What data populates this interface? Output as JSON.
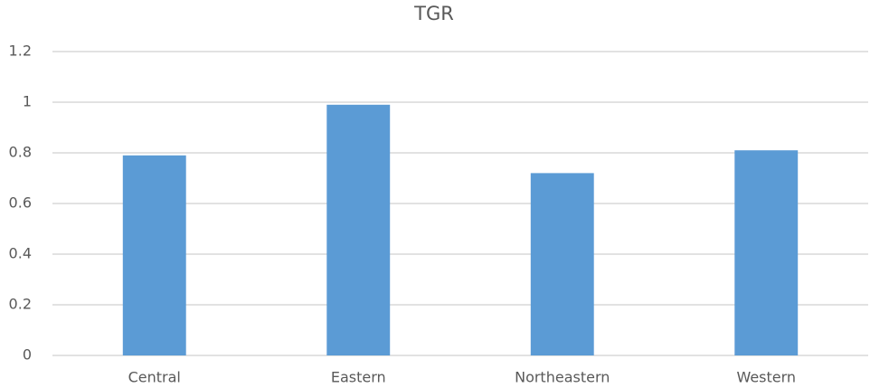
{
  "chart_data": {
    "type": "bar",
    "title": "TGR",
    "categories": [
      "Central",
      "Eastern",
      "Northeastern",
      "Western"
    ],
    "values": [
      0.79,
      0.99,
      0.72,
      0.81
    ],
    "color": "#5b9bd5",
    "ylim": [
      0,
      1.2
    ],
    "yticks": [
      0,
      0.2,
      0.4,
      0.6,
      0.8,
      1,
      1.2
    ],
    "grid": true
  }
}
